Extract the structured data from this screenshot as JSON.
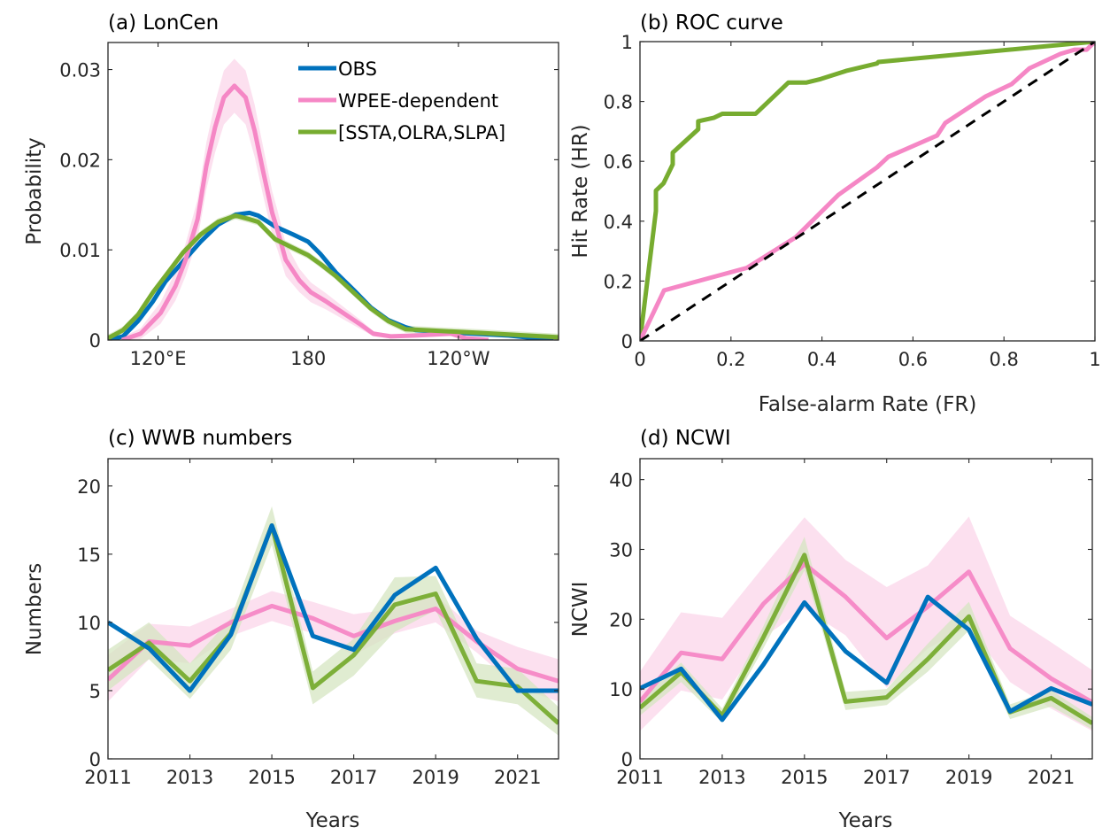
{
  "colors": {
    "obs": "#0072BD",
    "wpee": "#F587C5",
    "wpee_band": "#FBD5E9",
    "ssta": "#77AC30",
    "ssta_band": "#D6E6C2",
    "diagonal": "#000000",
    "axis": "#262626"
  },
  "chart_data": [
    {
      "id": "a",
      "type": "line",
      "title": "(a) LonCen",
      "xlabel": "",
      "ylabel": "Probability",
      "xlim": [
        100,
        280
      ],
      "ylim": [
        0,
        0.033
      ],
      "xticks": [
        120,
        180,
        240
      ],
      "xtick_labels": [
        "120°E",
        "180",
        "120°W"
      ],
      "yticks": [
        0,
        0.01,
        0.02,
        0.03
      ],
      "ytick_labels": [
        "0",
        "0.01",
        "0.02",
        "0.03"
      ],
      "legend": {
        "placement": "top-right",
        "entries": [
          "OBS",
          "WPEE-dependent",
          "[SSTA,OLRA,SLPA]"
        ]
      },
      "series": [
        {
          "name": "OBS",
          "color_key": "obs",
          "x": [
            100,
            106,
            112,
            118,
            123,
            130,
            137,
            144,
            151,
            156.5,
            160,
            166.7,
            174,
            180,
            185,
            191,
            198,
            205,
            212,
            219,
            223,
            240,
            260,
            278
          ],
          "y": [
            0.0,
            0.0004,
            0.0021,
            0.0043,
            0.0065,
            0.0087,
            0.0109,
            0.0128,
            0.0139,
            0.0141,
            0.0138,
            0.0126,
            0.0117,
            0.0109,
            0.0095,
            0.0075,
            0.0056,
            0.0036,
            0.0022,
            0.0014,
            0.0011,
            0.0008,
            0.0005,
            0.0
          ]
        },
        {
          "name": "WPEE-dependent",
          "color_key": "wpee",
          "x": [
            105.6,
            113,
            121,
            127,
            131,
            135.8,
            139.3,
            142.8,
            146.3,
            150.5,
            155,
            158.6,
            162,
            165.6,
            167.7,
            171,
            176.5,
            181,
            187,
            194,
            201,
            206,
            213,
            223,
            237,
            243,
            252
          ],
          "y": [
            0.0,
            0.0007,
            0.003,
            0.006,
            0.0089,
            0.0134,
            0.0193,
            0.0236,
            0.0269,
            0.0282,
            0.0269,
            0.0232,
            0.0187,
            0.0141,
            0.0122,
            0.0089,
            0.0066,
            0.0053,
            0.0043,
            0.003,
            0.0017,
            0.0007,
            0.0004,
            0.0005,
            0.0007,
            0.0002,
            0.0
          ],
          "band_halfwidth": [
            0.0003,
            0.0006,
            0.0012,
            0.0016,
            0.0018,
            0.0022,
            0.0026,
            0.0028,
            0.003,
            0.003,
            0.003,
            0.0029,
            0.0027,
            0.0024,
            0.0022,
            0.0018,
            0.0013,
            0.0011,
            0.0009,
            0.0007,
            0.0005,
            0.0003,
            0.0002,
            0.0002,
            0.0002,
            0.0002,
            0.0001
          ]
        },
        {
          "name": "[SSTA,OLRA,SLPA]",
          "color_key": "ssta",
          "x": [
            100,
            106,
            112,
            118,
            124,
            130,
            137,
            144,
            151,
            156.5,
            160,
            166.7,
            174,
            180,
            185,
            191,
            198,
            205,
            212,
            219,
            248,
            280
          ],
          "y": [
            0.0002,
            0.0011,
            0.0028,
            0.0053,
            0.0075,
            0.0097,
            0.0117,
            0.0131,
            0.0138,
            0.0134,
            0.0131,
            0.0112,
            0.0102,
            0.0094,
            0.0084,
            0.0071,
            0.0053,
            0.0035,
            0.0021,
            0.0012,
            0.0008,
            0.0003
          ],
          "band_halfwidth": 0.0004
        }
      ]
    },
    {
      "id": "b",
      "type": "line",
      "title": "(b) ROC curve",
      "xlabel": "False-alarm Rate (FR)",
      "ylabel": "Hit Rate (HR)",
      "xlim": [
        0,
        1
      ],
      "ylim": [
        0,
        1
      ],
      "xticks": [
        0,
        0.2,
        0.4,
        0.6,
        0.8,
        1
      ],
      "xtick_labels": [
        "0",
        "0.2",
        "0.4",
        "0.6",
        "0.8",
        "1"
      ],
      "yticks": [
        0,
        0.2,
        0.4,
        0.6,
        0.8,
        1
      ],
      "ytick_labels": [
        "0",
        "0.2",
        "0.4",
        "0.6",
        "0.8",
        "1"
      ],
      "series": [
        {
          "name": "[SSTA,OLRA,SLPA]",
          "color_key": "ssta",
          "x": [
            0,
            0.035,
            0.035,
            0.052,
            0.072,
            0.072,
            0.128,
            0.128,
            0.163,
            0.181,
            0.254,
            0.326,
            0.365,
            0.397,
            0.453,
            0.521,
            0.524,
            1.0
          ],
          "y": [
            0,
            0.434,
            0.502,
            0.527,
            0.59,
            0.629,
            0.707,
            0.734,
            0.746,
            0.759,
            0.759,
            0.863,
            0.863,
            0.875,
            0.902,
            0.927,
            0.932,
            1.0
          ]
        },
        {
          "name": "WPEE-dependent",
          "color_key": "wpee",
          "x": [
            0,
            0.053,
            0.235,
            0.342,
            0.436,
            0.521,
            0.546,
            0.653,
            0.671,
            0.76,
            0.817,
            0.856,
            0.924,
            0.955,
            0.982,
            1.0
          ],
          "y": [
            0,
            0.169,
            0.244,
            0.346,
            0.488,
            0.58,
            0.615,
            0.686,
            0.728,
            0.817,
            0.858,
            0.911,
            0.959,
            0.973,
            0.973,
            1.0
          ]
        },
        {
          "name": "no-skill diagonal",
          "color_key": "diagonal",
          "dashed": true,
          "x": [
            0,
            1
          ],
          "y": [
            0,
            1
          ]
        }
      ]
    },
    {
      "id": "c",
      "type": "line",
      "title": "(c) WWB numbers",
      "xlabel": "Years",
      "ylabel": "Numbers",
      "xlim": [
        2011,
        2022
      ],
      "ylim": [
        0,
        22
      ],
      "xticks": [
        2011,
        2013,
        2015,
        2017,
        2019,
        2021
      ],
      "xtick_labels": [
        "2011",
        "2013",
        "2015",
        "2017",
        "2019",
        "2021"
      ],
      "yticks": [
        0,
        5,
        10,
        15,
        20
      ],
      "ytick_labels": [
        "0",
        "5",
        "10",
        "15",
        "20"
      ],
      "x": [
        2011,
        2012,
        2013,
        2014,
        2015,
        2016,
        2017,
        2018,
        2019,
        2020,
        2021,
        2022
      ],
      "series": [
        {
          "name": "WPEE-dependent",
          "color_key": "wpee",
          "values": [
            5.8,
            8.6,
            8.3,
            10.0,
            11.2,
            10.3,
            9.0,
            10.1,
            11.0,
            8.6,
            6.6,
            5.7
          ],
          "band_upper": [
            7.6,
            9.9,
            9.7,
            11.0,
            12.3,
            11.5,
            10.6,
            11.0,
            12.0,
            9.4,
            8.2,
            7.3
          ],
          "band_lower": [
            4.2,
            7.3,
            7.0,
            9.0,
            10.1,
            9.2,
            7.6,
            9.2,
            10.0,
            7.8,
            5.2,
            4.2
          ]
        },
        {
          "name": "[SSTA,OLRA,SLPA]",
          "color_key": "ssta",
          "values": [
            6.5,
            8.5,
            5.7,
            9.2,
            17.1,
            5.2,
            7.6,
            11.3,
            12.1,
            5.7,
            5.3,
            2.6
          ],
          "band_upper": [
            8.0,
            10.0,
            7.0,
            10.3,
            18.5,
            6.4,
            8.8,
            13.3,
            13.4,
            7.0,
            6.6,
            3.8
          ],
          "band_lower": [
            5.0,
            7.3,
            4.4,
            8.0,
            15.7,
            4.0,
            6.1,
            9.3,
            10.9,
            4.5,
            4.0,
            1.7
          ]
        },
        {
          "name": "OBS",
          "color_key": "obs",
          "values": [
            10.0,
            8.1,
            5.0,
            9.1,
            17.1,
            9.0,
            8.0,
            12.0,
            14.0,
            8.8,
            5.0,
            5.0
          ]
        }
      ]
    },
    {
      "id": "d",
      "type": "line",
      "title": "(d) NCWI",
      "xlabel": "Years",
      "ylabel": "NCWI",
      "xlim": [
        2011,
        2022
      ],
      "ylim": [
        0,
        43
      ],
      "xticks": [
        2011,
        2013,
        2015,
        2017,
        2019,
        2021
      ],
      "xtick_labels": [
        "2011",
        "2013",
        "2015",
        "2017",
        "2019",
        "2021"
      ],
      "yticks": [
        0,
        10,
        20,
        30,
        40
      ],
      "ytick_labels": [
        "0",
        "10",
        "20",
        "30",
        "40"
      ],
      "x": [
        2011,
        2012,
        2013,
        2014,
        2015,
        2016,
        2017,
        2018,
        2019,
        2020,
        2021,
        2022
      ],
      "series": [
        {
          "name": "WPEE-dependent",
          "color_key": "wpee",
          "values": [
            8.2,
            15.2,
            14.3,
            22.2,
            27.9,
            23.2,
            17.3,
            21.8,
            26.8,
            15.8,
            11.5,
            8.1
          ],
          "band_upper": [
            12.5,
            21.0,
            20.2,
            27.5,
            34.6,
            28.5,
            24.6,
            27.7,
            34.7,
            20.5,
            16.7,
            12.7
          ],
          "band_lower": [
            4.0,
            9.8,
            8.5,
            17.4,
            21.5,
            17.7,
            10.2,
            15.8,
            19.0,
            11.0,
            7.2,
            4.0
          ]
        },
        {
          "name": "[SSTA,OLRA,SLPA]",
          "color_key": "ssta",
          "values": [
            7.3,
            12.4,
            6.2,
            17.4,
            29.2,
            8.2,
            8.8,
            14.3,
            20.4,
            6.7,
            8.7,
            5.1
          ],
          "band_upper": [
            8.5,
            13.8,
            7.2,
            19.0,
            31.8,
            9.6,
            10.0,
            16.5,
            22.5,
            7.8,
            9.8,
            6.0
          ],
          "band_lower": [
            6.2,
            11.0,
            5.2,
            15.8,
            27.0,
            7.0,
            7.7,
            12.5,
            18.4,
            5.7,
            7.5,
            4.2
          ]
        },
        {
          "name": "OBS",
          "color_key": "obs",
          "values": [
            10.1,
            12.9,
            5.6,
            13.5,
            22.4,
            15.4,
            10.9,
            23.2,
            18.5,
            6.8,
            10.1,
            7.8
          ]
        }
      ]
    }
  ]
}
